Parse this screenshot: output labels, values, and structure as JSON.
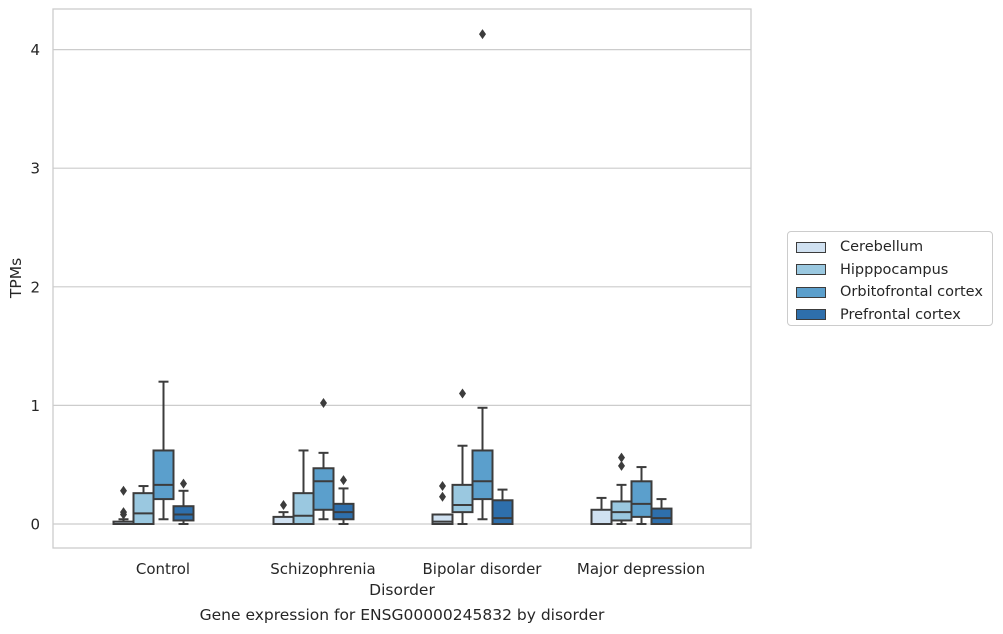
{
  "chart_data": {
    "type": "boxplot",
    "xlabel": "Disorder",
    "ylabel": "TPMs",
    "caption": "Gene expression for ENSG00000245832 by disorder",
    "categories": [
      "Control",
      "Schizophrenia",
      "Bipolar disorder",
      "Major depression"
    ],
    "ylim": [
      -0.2,
      4.35
    ],
    "yticks": [
      0,
      1,
      2,
      3,
      4
    ],
    "grid": "horizontal",
    "legend_position": "center-right",
    "series": [
      {
        "name": "Cerebellum",
        "color": "#d0e1f1",
        "boxes": [
          {
            "whisker_low": 0.0,
            "q1": 0.0,
            "median": 0.0,
            "q3": 0.02,
            "whisker_high": 0.04,
            "outliers": [
              0.08,
              0.1,
              0.28
            ]
          },
          {
            "whisker_low": 0.0,
            "q1": 0.0,
            "median": 0.0,
            "q3": 0.06,
            "whisker_high": 0.1,
            "outliers": [
              0.16
            ]
          },
          {
            "whisker_low": 0.0,
            "q1": 0.0,
            "median": 0.02,
            "q3": 0.08,
            "whisker_high": 0.08,
            "outliers": [
              0.23,
              0.32
            ]
          },
          {
            "whisker_low": 0.0,
            "q1": 0.0,
            "median": 0.0,
            "q3": 0.12,
            "whisker_high": 0.22,
            "outliers": []
          }
        ]
      },
      {
        "name": "Hipppocampus",
        "color": "#9ac8e0",
        "boxes": [
          {
            "whisker_low": 0.0,
            "q1": 0.0,
            "median": 0.09,
            "q3": 0.26,
            "whisker_high": 0.32,
            "outliers": []
          },
          {
            "whisker_low": 0.0,
            "q1": 0.0,
            "median": 0.07,
            "q3": 0.26,
            "whisker_high": 0.62,
            "outliers": []
          },
          {
            "whisker_low": 0.0,
            "q1": 0.1,
            "median": 0.16,
            "q3": 0.33,
            "whisker_high": 0.66,
            "outliers": [
              1.1
            ]
          },
          {
            "whisker_low": 0.0,
            "q1": 0.03,
            "median": 0.1,
            "q3": 0.19,
            "whisker_high": 0.33,
            "outliers": [
              0.49,
              0.56
            ]
          }
        ]
      },
      {
        "name": "Orbitofrontal cortex",
        "color": "#5b9fcc",
        "boxes": [
          {
            "whisker_low": 0.04,
            "q1": 0.21,
            "median": 0.33,
            "q3": 0.62,
            "whisker_high": 1.2,
            "outliers": []
          },
          {
            "whisker_low": 0.04,
            "q1": 0.12,
            "median": 0.36,
            "q3": 0.47,
            "whisker_high": 0.6,
            "outliers": [
              1.02
            ]
          },
          {
            "whisker_low": 0.04,
            "q1": 0.21,
            "median": 0.36,
            "q3": 0.62,
            "whisker_high": 0.98,
            "outliers": [
              4.13
            ]
          },
          {
            "whisker_low": 0.0,
            "q1": 0.06,
            "median": 0.17,
            "q3": 0.36,
            "whisker_high": 0.48,
            "outliers": []
          }
        ]
      },
      {
        "name": "Prefrontal cortex",
        "color": "#2e6fac",
        "boxes": [
          {
            "whisker_low": 0.0,
            "q1": 0.03,
            "median": 0.08,
            "q3": 0.15,
            "whisker_high": 0.28,
            "outliers": [
              0.34
            ]
          },
          {
            "whisker_low": 0.0,
            "q1": 0.04,
            "median": 0.1,
            "q3": 0.17,
            "whisker_high": 0.3,
            "outliers": [
              0.37
            ]
          },
          {
            "whisker_low": 0.0,
            "q1": 0.0,
            "median": 0.05,
            "q3": 0.2,
            "whisker_high": 0.29,
            "outliers": []
          },
          {
            "whisker_low": 0.0,
            "q1": 0.0,
            "median": 0.05,
            "q3": 0.13,
            "whisker_high": 0.21,
            "outliers": []
          }
        ]
      }
    ]
  }
}
